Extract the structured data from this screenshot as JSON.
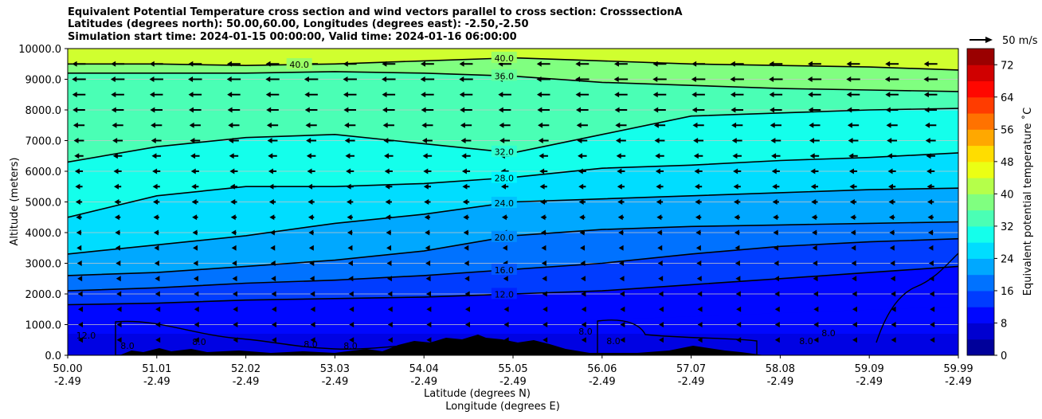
{
  "title_lines": [
    "Equivalent Potential Temperature cross section and wind vectors parallel to cross section: CrosssectionA",
    "Latitudes (degrees north): 50.00,60.00, Longitudes (degrees east): -2.50,-2.50",
    "Simulation start time: 2024-01-15 00:00:00, Valid time: 2024-01-16 06:00:00"
  ],
  "quiver_key_label": "50 m/s",
  "colorbar": {
    "label": "Equivalent potential temperature ˚C",
    "min": 0,
    "max": 76,
    "step": 4,
    "ticks": [
      "0",
      "8",
      "16",
      "24",
      "32",
      "40",
      "48",
      "56",
      "64",
      "72"
    ]
  },
  "chart_data": {
    "type": "filled-contour cross-section with wind vectors",
    "xlabel_lines": [
      "Latitude (degrees N)",
      "Longitude (degrees E)"
    ],
    "ylabel": "Altitude (meters)",
    "xlim": [
      50.0,
      59.99
    ],
    "ylim": [
      0,
      10000
    ],
    "x_ticks": [
      {
        "lat": "50.00",
        "lon": "-2.49"
      },
      {
        "lat": "51.01",
        "lon": "-2.49"
      },
      {
        "lat": "52.02",
        "lon": "-2.49"
      },
      {
        "lat": "53.03",
        "lon": "-2.49"
      },
      {
        "lat": "54.04",
        "lon": "-2.49"
      },
      {
        "lat": "55.05",
        "lon": "-2.49"
      },
      {
        "lat": "56.06",
        "lon": "-2.49"
      },
      {
        "lat": "57.07",
        "lon": "-2.49"
      },
      {
        "lat": "58.08",
        "lon": "-2.49"
      },
      {
        "lat": "59.09",
        "lon": "-2.49"
      },
      {
        "lat": "59.99",
        "lon": "-2.49"
      }
    ],
    "y_ticks": [
      "0.0",
      "1000.0",
      "2000.0",
      "3000.0",
      "4000.0",
      "5000.0",
      "6000.0",
      "7000.0",
      "8000.0",
      "9000.0",
      "10000.0"
    ],
    "grid": "horizontal",
    "contour_levels": [
      {
        "value": 12,
        "label": "12.0",
        "heights_m": [
          1650,
          1700,
          1800,
          1850,
          1900,
          2000,
          2100,
          2300,
          2500,
          2700,
          2900
        ]
      },
      {
        "value": 16,
        "label": "16.0",
        "heights_m": [
          2100,
          2200,
          2350,
          2450,
          2600,
          2800,
          3000,
          3300,
          3550,
          3700,
          3800
        ]
      },
      {
        "value": 20,
        "label": "20.0",
        "heights_m": [
          2600,
          2700,
          2900,
          3100,
          3400,
          3900,
          4100,
          4200,
          4250,
          4300,
          4350
        ]
      },
      {
        "value": 24,
        "label": "24.0",
        "heights_m": [
          3300,
          3600,
          3900,
          4300,
          4600,
          5000,
          5100,
          5200,
          5300,
          5400,
          5450
        ]
      },
      {
        "value": 28,
        "label": "28.0",
        "heights_m": [
          4500,
          5200,
          5500,
          5500,
          5600,
          5800,
          6100,
          6200,
          6350,
          6450,
          6600
        ]
      },
      {
        "value": 32,
        "label": "32.0",
        "heights_m": [
          6300,
          6800,
          7100,
          7200,
          6900,
          6600,
          7200,
          7800,
          7900,
          8000,
          8050
        ]
      },
      {
        "value": 36,
        "label": "36.0",
        "heights_m": [
          9200,
          9200,
          9200,
          9250,
          9200,
          9100,
          8900,
          8800,
          8700,
          8650,
          8600
        ]
      },
      {
        "value": 40,
        "label": "40.0",
        "heights_m": [
          9500,
          9500,
          9450,
          9500,
          9600,
          9700,
          9600,
          9500,
          9450,
          9400,
          9300
        ]
      }
    ],
    "lower_contour_labels": [
      "12.0",
      "8.0",
      "8.0",
      "8.0",
      "8.0",
      "8.0",
      "8.0",
      "8.0",
      "8.0"
    ],
    "wind_vectors": {
      "direction": "from north to south (pointing toward lower latitude)",
      "speed_profile_m_s": [
        {
          "height_m": 1000,
          "speed": 3
        },
        {
          "height_m": 2000,
          "speed": 6
        },
        {
          "height_m": 3000,
          "speed": 10
        },
        {
          "height_m": 4000,
          "speed": 14
        },
        {
          "height_m": 5000,
          "speed": 18
        },
        {
          "height_m": 6000,
          "speed": 22
        },
        {
          "height_m": 7000,
          "speed": 28
        },
        {
          "height_m": 8000,
          "speed": 34
        },
        {
          "height_m": 9000,
          "speed": 38
        },
        {
          "height_m": 9800,
          "speed": 36
        }
      ]
    }
  }
}
